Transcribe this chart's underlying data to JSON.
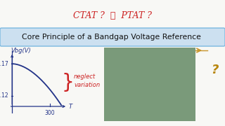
{
  "title_top": "CTAT ?  🤔  PTAT ?",
  "title_top_color": "#cc2222",
  "banner_text": "Core Principle of a Bandgap Voltage Reference",
  "banner_bg": "#cce0f0",
  "banner_border": "#7ab8e0",
  "banner_text_color": "#111111",
  "graph_ylabel": "Vbg(V)",
  "graph_xlabel": "T",
  "tick_y1": "1.17",
  "tick_y2": "1.12",
  "tick_x1": "300",
  "curve_color": "#223388",
  "axis_color": "#223388",
  "neglect_text": "neglect\nvariation",
  "neglect_color": "#cc2222",
  "brace_color": "#cc2222",
  "question_mark": "?",
  "question_color": "#b8860b",
  "bg_color": "#f8f8f5",
  "photo_color": "#7a9a7a",
  "arrow_color": "#c8952a"
}
